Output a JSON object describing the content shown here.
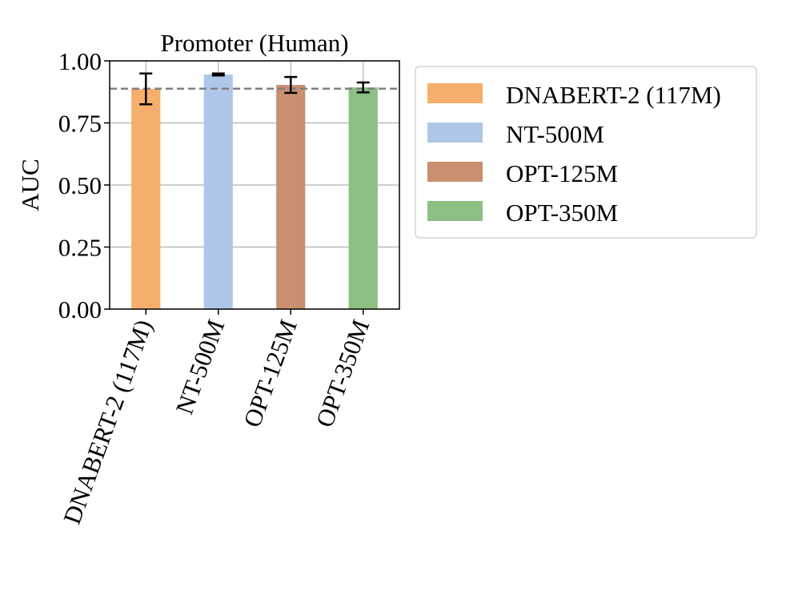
{
  "chart_data": {
    "type": "bar",
    "title": "Promoter (Human)",
    "xlabel": "",
    "ylabel": "AUC",
    "ylim": [
      0,
      1
    ],
    "yticks": [
      "0.00",
      "0.25",
      "0.50",
      "0.75",
      "1.00"
    ],
    "categories": [
      "DNABERT-2 (117M)",
      "NT-500M",
      "OPT-125M",
      "OPT-350M"
    ],
    "values": [
      0.887,
      0.945,
      0.903,
      0.893
    ],
    "errors": [
      0.062,
      0.004,
      0.032,
      0.02
    ],
    "colors": [
      "#F5AE6B",
      "#AEC7E8",
      "#C98F6E",
      "#8CBF82"
    ],
    "reference_line": 0.888,
    "grid": true,
    "legend_position": "outside-right",
    "legend": [
      {
        "label": "DNABERT-2 (117M)",
        "color": "#F5AE6B"
      },
      {
        "label": "NT-500M",
        "color": "#AEC7E8"
      },
      {
        "label": "OPT-125M",
        "color": "#C98F6E"
      },
      {
        "label": "OPT-350M",
        "color": "#8CBF82"
      }
    ]
  }
}
